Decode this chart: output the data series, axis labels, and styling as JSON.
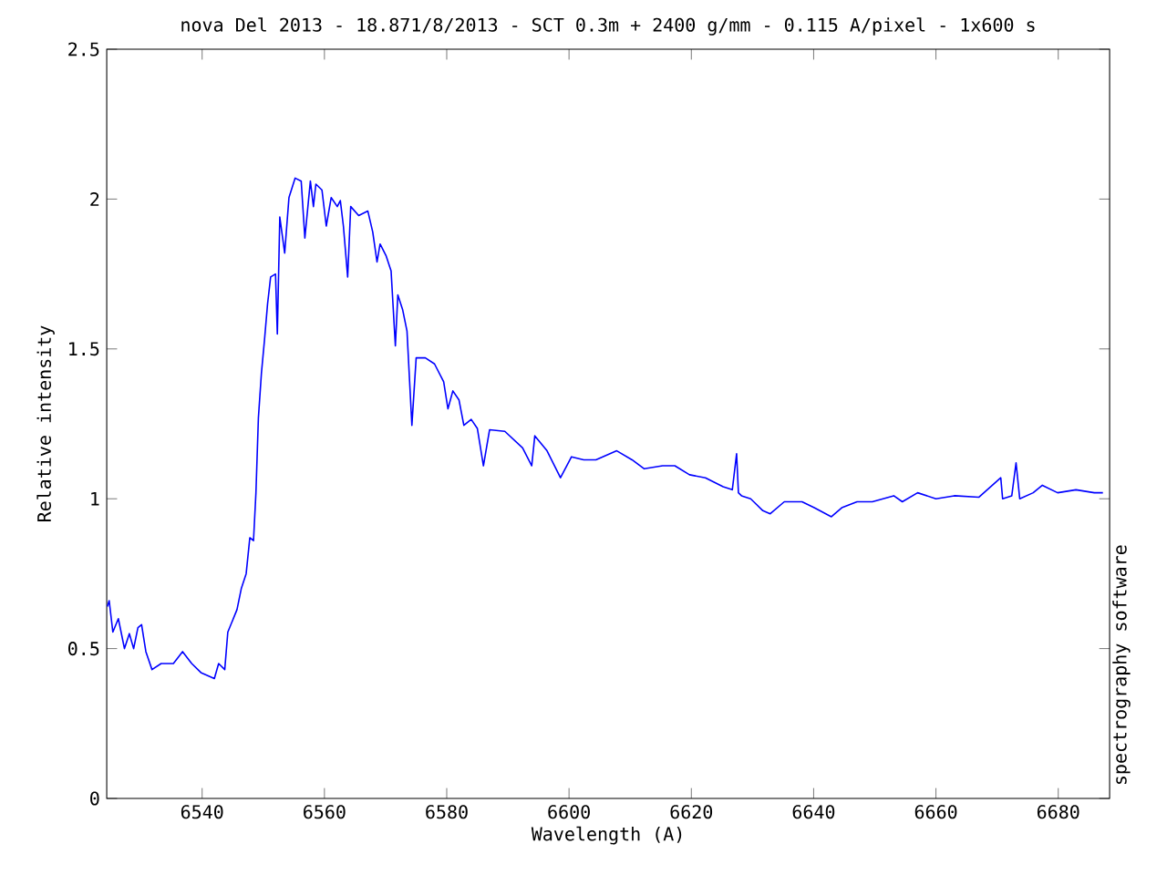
{
  "chart_data": {
    "type": "line",
    "title": "nova Del 2013 - 18.871/8/2013 - SCT 0.3m + 2400 g/mm - 0.115 A/pixel - 1x600 s",
    "xlabel": "Wavelength (A)",
    "ylabel": "Relative intensity",
    "annotations": [
      "spectrography software"
    ],
    "xlim": [
      6524.4,
      6688.4
    ],
    "ylim": [
      0,
      2.5
    ],
    "xticks": [
      6540,
      6560,
      6580,
      6600,
      6620,
      6640,
      6660,
      6680
    ],
    "yticks": [
      0,
      0.5,
      1,
      1.5,
      2,
      2.5
    ],
    "series": [
      {
        "color": "#0000ff",
        "x": [
          6524.5,
          6524.8,
          6525.4,
          6526.3,
          6527.3,
          6528.1,
          6528.8,
          6529.5,
          6530.1,
          6530.8,
          6531.8,
          6533.3,
          6535.3,
          6536.8,
          6538.3,
          6539.8,
          6542.0,
          6542.7,
          6543.7,
          6544.2,
          6545.7,
          6546.4,
          6547.2,
          6547.8,
          6548.4,
          6548.8,
          6549.2,
          6549.7,
          6550.2,
          6550.7,
          6551.2,
          6552.0,
          6552.3,
          6552.7,
          6553.5,
          6554.2,
          6555.2,
          6556.2,
          6556.8,
          6557.7,
          6558.2,
          6558.6,
          6559.6,
          6560.3,
          6561.1,
          6562.1,
          6562.6,
          6563.1,
          6563.8,
          6564.3,
          6565.6,
          6567.1,
          6567.9,
          6568.6,
          6569.1,
          6570.1,
          6570.9,
          6571.6,
          6572.0,
          6572.8,
          6573.5,
          6574.3,
          6575.0,
          6576.5,
          6578.0,
          6579.5,
          6580.2,
          6581.0,
          6582.0,
          6582.8,
          6584.0,
          6585.0,
          6586.0,
          6587.0,
          6589.5,
          6592.4,
          6593.9,
          6594.4,
          6596.4,
          6598.6,
          6600.4,
          6602.4,
          6604.4,
          6607.8,
          6610.3,
          6612.3,
          6615.3,
          6617.3,
          6619.7,
          6622.3,
          6625.2,
          6626.7,
          6627.4,
          6627.7,
          6628.2,
          6629.7,
          6630.2,
          6631.7,
          6632.9,
          6635.2,
          6638.1,
          6640.1,
          6642.9,
          6644.6,
          6647.1,
          6649.6,
          6653.1,
          6654.5,
          6657.0,
          6660.0,
          6663.0,
          6667.0,
          6670.6,
          6670.9,
          6672.4,
          6673.1,
          6673.7,
          6675.9,
          6677.4,
          6679.9,
          6682.9,
          6685.9,
          6687.3
        ],
        "values": [
          0.64,
          0.66,
          0.555,
          0.6,
          0.5,
          0.55,
          0.5,
          0.57,
          0.58,
          0.49,
          0.43,
          0.45,
          0.45,
          0.49,
          0.45,
          0.42,
          0.4,
          0.45,
          0.43,
          0.555,
          0.63,
          0.7,
          0.75,
          0.87,
          0.86,
          1.02,
          1.27,
          1.42,
          1.53,
          1.65,
          1.74,
          1.75,
          1.55,
          1.94,
          1.82,
          2.005,
          2.07,
          2.06,
          1.87,
          2.06,
          1.975,
          2.05,
          2.03,
          1.91,
          2.005,
          1.975,
          1.995,
          1.91,
          1.74,
          1.975,
          1.945,
          1.96,
          1.89,
          1.79,
          1.85,
          1.81,
          1.76,
          1.51,
          1.68,
          1.63,
          1.56,
          1.245,
          1.47,
          1.47,
          1.45,
          1.39,
          1.3,
          1.36,
          1.33,
          1.245,
          1.265,
          1.235,
          1.11,
          1.23,
          1.225,
          1.17,
          1.11,
          1.21,
          1.16,
          1.07,
          1.14,
          1.13,
          1.13,
          1.16,
          1.13,
          1.1,
          1.11,
          1.11,
          1.08,
          1.07,
          1.04,
          1.03,
          1.15,
          1.02,
          1.01,
          1.0,
          0.99,
          0.96,
          0.95,
          0.99,
          0.99,
          0.97,
          0.94,
          0.97,
          0.99,
          0.99,
          1.01,
          0.99,
          1.02,
          1.0,
          1.01,
          1.005,
          1.07,
          1.0,
          1.01,
          1.12,
          1.0,
          1.02,
          1.045,
          1.02,
          1.03,
          1.02,
          1.02
        ]
      }
    ]
  }
}
